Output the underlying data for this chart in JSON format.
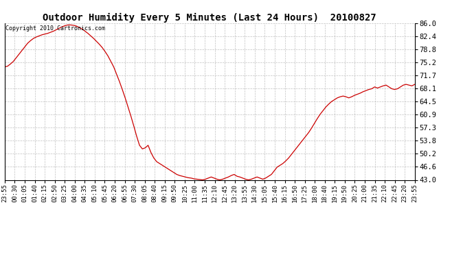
{
  "title": "Outdoor Humidity Every 5 Minutes (Last 24 Hours)  20100827",
  "copyright_text": "Copyright 2010 Cartronics.com",
  "line_color": "#cc0000",
  "background_color": "#ffffff",
  "grid_color": "#b0b0b0",
  "yticks": [
    43.0,
    46.6,
    50.2,
    53.8,
    57.3,
    60.9,
    64.5,
    68.1,
    71.7,
    75.2,
    78.8,
    82.4,
    86.0
  ],
  "ylim": [
    43.0,
    86.0
  ],
  "x_labels": [
    "23:55",
    "00:30",
    "01:05",
    "01:40",
    "02:15",
    "02:50",
    "03:25",
    "04:00",
    "04:35",
    "05:10",
    "05:45",
    "06:20",
    "06:55",
    "07:30",
    "08:05",
    "08:40",
    "09:15",
    "09:50",
    "10:25",
    "11:00",
    "11:35",
    "12:10",
    "12:45",
    "13:20",
    "13:55",
    "14:30",
    "15:05",
    "15:40",
    "16:15",
    "16:50",
    "17:25",
    "18:00",
    "18:40",
    "19:15",
    "19:50",
    "20:25",
    "21:00",
    "21:35",
    "22:10",
    "22:45",
    "23:20",
    "23:55"
  ],
  "humidity_values": [
    74.0,
    74.2,
    74.8,
    75.5,
    76.5,
    77.5,
    78.5,
    79.5,
    80.5,
    81.2,
    81.8,
    82.2,
    82.5,
    82.8,
    83.0,
    83.2,
    83.5,
    83.8,
    84.2,
    84.6,
    85.0,
    85.3,
    85.5,
    85.5,
    85.4,
    85.2,
    84.8,
    84.4,
    83.8,
    83.2,
    82.5,
    81.8,
    81.0,
    80.2,
    79.3,
    78.2,
    77.0,
    75.5,
    74.0,
    72.0,
    70.0,
    67.8,
    65.5,
    63.0,
    60.5,
    57.8,
    55.0,
    52.5,
    51.5,
    51.8,
    52.5,
    50.5,
    49.0,
    48.0,
    47.5,
    47.0,
    46.5,
    46.0,
    45.5,
    45.0,
    44.5,
    44.2,
    44.0,
    43.8,
    43.6,
    43.5,
    43.3,
    43.2,
    43.1,
    43.0,
    43.2,
    43.5,
    43.8,
    43.5,
    43.2,
    43.0,
    43.2,
    43.5,
    43.8,
    44.2,
    44.5,
    44.0,
    43.8,
    43.5,
    43.2,
    43.0,
    43.2,
    43.5,
    43.8,
    43.5,
    43.2,
    43.5,
    44.0,
    44.5,
    45.5,
    46.5,
    47.0,
    47.5,
    48.2,
    49.0,
    50.0,
    51.0,
    52.0,
    53.0,
    54.0,
    55.0,
    56.0,
    57.2,
    58.5,
    59.8,
    61.0,
    62.0,
    63.0,
    63.8,
    64.5,
    65.0,
    65.5,
    65.8,
    66.0,
    65.8,
    65.5,
    65.8,
    66.2,
    66.5,
    66.8,
    67.2,
    67.5,
    67.8,
    68.0,
    68.5,
    68.2,
    68.5,
    68.8,
    69.0,
    68.5,
    68.0,
    67.8,
    68.0,
    68.5,
    69.0,
    69.2,
    69.0,
    68.8,
    69.2
  ]
}
